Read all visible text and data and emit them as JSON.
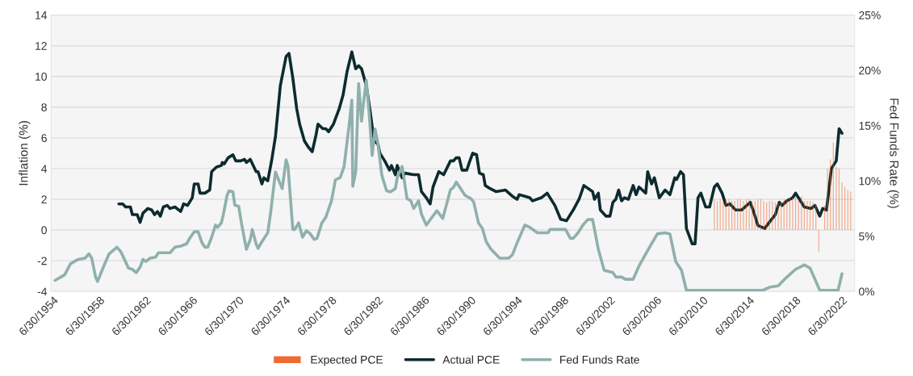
{
  "chart_data": {
    "type": "line",
    "ylabel": "Inflation (%)",
    "y2label": "Fed Funds Rate (%)",
    "xlim": [
      "1954-05",
      "2023-08"
    ],
    "xticks": [
      {
        "value": "1954-06-30",
        "label": "6/30/1954"
      },
      {
        "value": "1958-06-30",
        "label": "6/30/1958"
      },
      {
        "value": "1962-06-30",
        "label": "6/30/1962"
      },
      {
        "value": "1966-06-30",
        "label": "6/30/1966"
      },
      {
        "value": "1970-06-30",
        "label": "6/30/1970"
      },
      {
        "value": "1974-06-30",
        "label": "6/30/1974"
      },
      {
        "value": "1978-06-30",
        "label": "6/30/1978"
      },
      {
        "value": "1982-06-30",
        "label": "6/30/1982"
      },
      {
        "value": "1986-06-30",
        "label": "6/30/1986"
      },
      {
        "value": "1990-06-30",
        "label": "6/30/1990"
      },
      {
        "value": "1994-06-30",
        "label": "6/30/1994"
      },
      {
        "value": "1998-06-30",
        "label": "6/30/1998"
      },
      {
        "value": "2002-06-30",
        "label": "6/30/2002"
      },
      {
        "value": "2006-06-30",
        "label": "6/30/2006"
      },
      {
        "value": "2010-06-30",
        "label": "6/30/2010"
      },
      {
        "value": "2014-06-30",
        "label": "6/30/2014"
      },
      {
        "value": "2018-06-30",
        "label": "6/30/2018"
      },
      {
        "value": "2022-06-30",
        "label": "6/30/2022"
      }
    ],
    "ylim": [
      -4,
      14
    ],
    "yticks": [
      -4,
      -2,
      0,
      2,
      4,
      6,
      8,
      10,
      12,
      14
    ],
    "y2lim": [
      0,
      25
    ],
    "y2ticks": [
      {
        "value": 0,
        "label": "0%"
      },
      {
        "value": 5,
        "label": "5%"
      },
      {
        "value": 10,
        "label": "10%"
      },
      {
        "value": 15,
        "label": "15%"
      },
      {
        "value": 20,
        "label": "20%"
      },
      {
        "value": 25,
        "label": "25%"
      }
    ],
    "grid": "y",
    "legend": "bottom",
    "series": [
      {
        "name": "Expected PCE",
        "type": "bar",
        "color": "#ef6a33",
        "x": [
          "2011-07",
          "2011-10",
          "2012-01",
          "2012-04",
          "2012-07",
          "2012-10",
          "2013-01",
          "2013-04",
          "2013-07",
          "2013-10",
          "2014-01",
          "2014-04",
          "2014-07",
          "2014-10",
          "2015-01",
          "2015-04",
          "2015-07",
          "2015-10",
          "2016-01",
          "2016-04",
          "2016-07",
          "2016-10",
          "2017-01",
          "2017-04",
          "2017-07",
          "2017-10",
          "2018-01",
          "2018-04",
          "2018-07",
          "2018-10",
          "2019-01",
          "2019-04",
          "2019-07",
          "2019-10",
          "2020-01",
          "2020-04",
          "2020-07",
          "2020-10",
          "2021-01",
          "2021-04",
          "2021-07",
          "2021-10",
          "2022-01",
          "2022-04",
          "2022-07",
          "2022-10",
          "2023-01",
          "2023-04"
        ],
        "values": [
          2.0,
          1.9,
          2.0,
          1.9,
          2.0,
          2.0,
          1.9,
          1.9,
          2.0,
          2.0,
          1.9,
          2.0,
          2.0,
          1.9,
          1.9,
          2.0,
          2.0,
          1.9,
          1.8,
          1.9,
          1.9,
          1.8,
          1.8,
          1.9,
          2.0,
          2.0,
          2.1,
          2.1,
          2.2,
          2.0,
          2.2,
          1.9,
          1.9,
          1.9,
          1.8,
          1.7,
          -1.4,
          null,
          1.6,
          4.0,
          4.6,
          5.7,
          4.1,
          4.0,
          3.1,
          2.8,
          2.6,
          2.5
        ]
      },
      {
        "name": "Actual PCE",
        "color": "#0d2b2f",
        "x": [
          "1960-03",
          "1960-07",
          "1960-10",
          "1961-03",
          "1961-05",
          "1961-10",
          "1962-01",
          "1962-04",
          "1962-09",
          "1963-01",
          "1963-04",
          "1963-07",
          "1963-10",
          "1964-01",
          "1964-05",
          "1964-08",
          "1965-01",
          "1965-07",
          "1965-10",
          "1966-02",
          "1966-07",
          "1966-09",
          "1967-01",
          "1967-03",
          "1967-08",
          "1968-01",
          "1968-03",
          "1968-08",
          "1969-01",
          "1969-02",
          "1969-04",
          "1969-08",
          "1970-01",
          "1970-04",
          "1970-09",
          "1971-01",
          "1971-03",
          "1971-07",
          "1972-01",
          "1972-03",
          "1972-07",
          "1972-09",
          "1973-01",
          "1973-05",
          "1973-09",
          "1974-02",
          "1974-08",
          "1974-11",
          "1975-03",
          "1975-07",
          "1975-10",
          "1976-03",
          "1976-07",
          "1976-11",
          "1977-03",
          "1977-05",
          "1977-10",
          "1978-01",
          "1978-04",
          "1978-09",
          "1979-03",
          "1979-07",
          "1979-11",
          "1980-04",
          "1980-08",
          "1980-11",
          "1981-02",
          "1981-07",
          "1981-11",
          "1982-03",
          "1982-07",
          "1982-09",
          "1983-02",
          "1983-07",
          "1983-09",
          "1984-01",
          "1984-03",
          "1984-08",
          "1984-11",
          "1985-08",
          "1986-01",
          "1986-04",
          "1986-09",
          "1987-01",
          "1987-04",
          "1987-10",
          "1988-03",
          "1988-10",
          "1989-01",
          "1989-04",
          "1989-07",
          "1989-10",
          "1990-03",
          "1990-05",
          "1990-09",
          "1991-01",
          "1991-04",
          "1991-08",
          "1991-10",
          "1992-03",
          "1992-09",
          "1993-07",
          "1994-02",
          "1994-07",
          "1994-09",
          "1995-03",
          "1995-08",
          "1995-11",
          "1996-08",
          "1997-02",
          "1997-10",
          "1998-04",
          "1998-10",
          "1999-05",
          "1999-11",
          "2000-04",
          "2001-01",
          "2001-03",
          "2001-07",
          "2001-09",
          "2002-03",
          "2002-07",
          "2002-10",
          "2003-01",
          "2003-04",
          "2003-07",
          "2003-10",
          "2004-02",
          "2004-07",
          "2004-10",
          "2005-01",
          "2005-08",
          "2005-10",
          "2006-02",
          "2006-05",
          "2006-10",
          "2007-04",
          "2007-09",
          "2008-02",
          "2008-04",
          "2008-08",
          "2008-11",
          "2009-02",
          "2009-08",
          "2009-11",
          "2010-02",
          "2010-05",
          "2010-10",
          "2011-02",
          "2011-07",
          "2011-10",
          "2012-03",
          "2012-07",
          "2012-11",
          "2013-05",
          "2013-11",
          "2014-08",
          "2014-11",
          "2015-04",
          "2015-11",
          "2016-05",
          "2016-10",
          "2017-02",
          "2017-05",
          "2017-10",
          "2018-04",
          "2018-07",
          "2018-11",
          "2019-04",
          "2019-11",
          "2020-03",
          "2020-08",
          "2020-11",
          "2021-03",
          "2021-08",
          "2022-01",
          "2022-04",
          "2022-07"
        ],
        "values": [
          1.7,
          1.7,
          1.5,
          1.5,
          1.0,
          1.0,
          0.5,
          1.1,
          1.4,
          1.3,
          1.0,
          1.2,
          0.9,
          1.5,
          1.6,
          1.4,
          1.5,
          1.2,
          1.7,
          1.6,
          2.1,
          3.0,
          3.0,
          2.4,
          2.4,
          2.6,
          3.8,
          4.1,
          4.2,
          4.4,
          4.3,
          4.7,
          4.9,
          4.5,
          4.5,
          4.6,
          4.4,
          4.6,
          3.8,
          3.8,
          3.0,
          3.4,
          3.2,
          4.5,
          6.1,
          9.4,
          11.3,
          11.5,
          9.9,
          7.9,
          6.9,
          5.8,
          5.4,
          5.1,
          6.2,
          6.9,
          6.6,
          6.6,
          6.4,
          6.9,
          7.9,
          8.8,
          10.3,
          11.6,
          10.5,
          10.7,
          10.5,
          9.4,
          7.7,
          5.8,
          5.6,
          5.0,
          4.5,
          3.9,
          4.2,
          3.6,
          4.2,
          3.4,
          3.7,
          3.6,
          3.6,
          2.5,
          2.1,
          1.7,
          2.8,
          3.8,
          3.6,
          4.5,
          4.5,
          4.7,
          4.7,
          3.9,
          3.9,
          4.3,
          5.0,
          4.9,
          3.7,
          3.6,
          2.9,
          2.7,
          2.5,
          2.6,
          2.2,
          2.0,
          2.3,
          2.2,
          2.1,
          1.9,
          2.1,
          2.4,
          1.6,
          0.7,
          0.6,
          1.3,
          2.0,
          2.9,
          2.5,
          2.0,
          2.4,
          1.3,
          0.9,
          0.9,
          1.8,
          2.0,
          2.6,
          1.9,
          2.1,
          2.0,
          2.9,
          2.3,
          2.8,
          2.4,
          3.8,
          3.0,
          3.4,
          2.1,
          2.6,
          2.3,
          3.4,
          3.3,
          3.8,
          3.6,
          0.1,
          -0.9,
          -0.9,
          2.1,
          2.4,
          1.5,
          1.5,
          2.8,
          3.0,
          2.4,
          1.6,
          1.7,
          1.3,
          1.3,
          1.8,
          1.3,
          0.3,
          0.1,
          0.6,
          1.0,
          1.8,
          1.6,
          1.9,
          2.1,
          2.4,
          2.0,
          1.5,
          1.4,
          1.6,
          0.9,
          1.4,
          1.3,
          4.0,
          4.5,
          6.6,
          6.3
        ]
      },
      {
        "name": "Fed Funds Rate",
        "color": "#8fb0ad",
        "axis": "y2",
        "x": [
          "1954-09",
          "1955-07",
          "1956-01",
          "1956-09",
          "1957-04",
          "1957-08",
          "1957-11",
          "1958-03",
          "1958-05",
          "1958-11",
          "1959-05",
          "1960-01",
          "1960-05",
          "1961-01",
          "1961-05",
          "1961-09",
          "1962-01",
          "1962-04",
          "1962-07",
          "1962-11",
          "1963-05",
          "1963-08",
          "1964-04",
          "1964-08",
          "1965-01",
          "1965-07",
          "1966-01",
          "1966-05",
          "1966-09",
          "1967-01",
          "1967-05",
          "1967-08",
          "1967-11",
          "1968-03",
          "1968-07",
          "1968-09",
          "1969-01",
          "1969-03",
          "1969-07",
          "1969-09",
          "1970-01",
          "1970-03",
          "1970-07",
          "1970-10",
          "1971-03",
          "1971-07",
          "1971-09",
          "1972-01",
          "1972-03",
          "1972-07",
          "1973-01",
          "1973-04",
          "1973-09",
          "1974-02",
          "1974-04",
          "1974-08",
          "1974-10",
          "1975-03",
          "1975-05",
          "1975-09",
          "1976-01",
          "1976-05",
          "1976-09",
          "1977-01",
          "1977-04",
          "1977-09",
          "1978-01",
          "1978-07",
          "1978-11",
          "1979-04",
          "1979-08",
          "1980-01",
          "1980-04",
          "1980-05",
          "1980-08",
          "1980-11",
          "1981-02",
          "1981-04",
          "1981-07",
          "1981-10",
          "1982-01",
          "1982-04",
          "1982-07",
          "1982-11",
          "1983-04",
          "1983-08",
          "1984-01",
          "1984-03",
          "1984-08",
          "1985-01",
          "1985-05",
          "1985-08",
          "1986-01",
          "1986-04",
          "1986-09",
          "1987-02",
          "1987-08",
          "1988-02",
          "1988-07",
          "1988-10",
          "1989-01",
          "1989-04",
          "1990-01",
          "1990-07",
          "1990-10",
          "1991-03",
          "1991-07",
          "1991-11",
          "1992-04",
          "1993-01",
          "1993-03",
          "1993-10",
          "1994-02",
          "1994-07",
          "1995-03",
          "1995-08",
          "1996-04",
          "1997-03",
          "1997-05",
          "1997-11",
          "1998-09",
          "1999-02",
          "1999-05",
          "1999-10",
          "2000-03",
          "2000-08",
          "2001-01",
          "2001-07",
          "2002-01",
          "2002-10",
          "2003-01",
          "2003-07",
          "2003-11",
          "2004-07",
          "2005-01",
          "2005-10",
          "2006-08",
          "2007-04",
          "2007-09",
          "2008-03",
          "2008-09",
          "2009-02",
          "2010-02",
          "2011-05",
          "2011-11",
          "2012-09",
          "2013-05",
          "2014-07",
          "2015-09",
          "2016-05",
          "2017-01",
          "2017-10",
          "2018-07",
          "2019-04",
          "2019-10",
          "2020-08",
          "2021-04",
          "2022-03",
          "2022-07"
        ],
        "values": [
          1.0,
          1.5,
          2.5,
          2.9,
          3.0,
          3.4,
          3.0,
          1.3,
          0.9,
          2.2,
          3.4,
          4.0,
          3.6,
          2.1,
          2.0,
          1.7,
          2.2,
          2.9,
          2.7,
          3.0,
          3.1,
          3.5,
          3.5,
          3.5,
          4.0,
          4.1,
          4.3,
          4.9,
          5.4,
          5.4,
          4.4,
          4.0,
          4.0,
          4.9,
          6.0,
          5.8,
          6.2,
          6.9,
          8.7,
          9.1,
          9.0,
          7.8,
          7.7,
          6.1,
          3.8,
          4.7,
          5.6,
          4.3,
          3.9,
          4.5,
          5.3,
          7.1,
          10.8,
          9.7,
          9.3,
          11.9,
          11.3,
          5.6,
          5.6,
          6.2,
          4.9,
          5.5,
          5.2,
          4.7,
          4.8,
          6.2,
          6.7,
          8.2,
          10.1,
          10.3,
          11.3,
          14.9,
          17.3,
          9.5,
          10.8,
          18.8,
          15.4,
          17.0,
          19.1,
          16.0,
          12.3,
          14.7,
          13.4,
          10.5,
          9.1,
          9.0,
          9.3,
          10.3,
          11.3,
          8.4,
          8.2,
          7.5,
          8.2,
          7.0,
          6.0,
          6.6,
          7.3,
          6.6,
          8.2,
          9.2,
          9.4,
          9.9,
          8.7,
          8.4,
          8.1,
          6.2,
          5.7,
          4.5,
          3.8,
          3.0,
          3.0,
          3.0,
          3.3,
          4.4,
          6.0,
          5.8,
          5.3,
          5.3,
          5.6,
          5.6,
          5.6,
          4.8,
          4.8,
          5.3,
          6.0,
          6.5,
          6.5,
          3.8,
          1.9,
          1.7,
          1.3,
          1.3,
          1.1,
          1.1,
          2.3,
          3.7,
          5.2,
          5.3,
          5.2,
          2.7,
          1.9,
          0.1,
          0.1,
          0.1,
          0.1,
          0.1,
          0.1,
          0.1,
          0.1,
          0.4,
          0.5,
          1.3,
          2.0,
          2.4,
          2.1,
          0.1,
          0.1,
          0.1,
          1.6
        ]
      }
    ]
  }
}
